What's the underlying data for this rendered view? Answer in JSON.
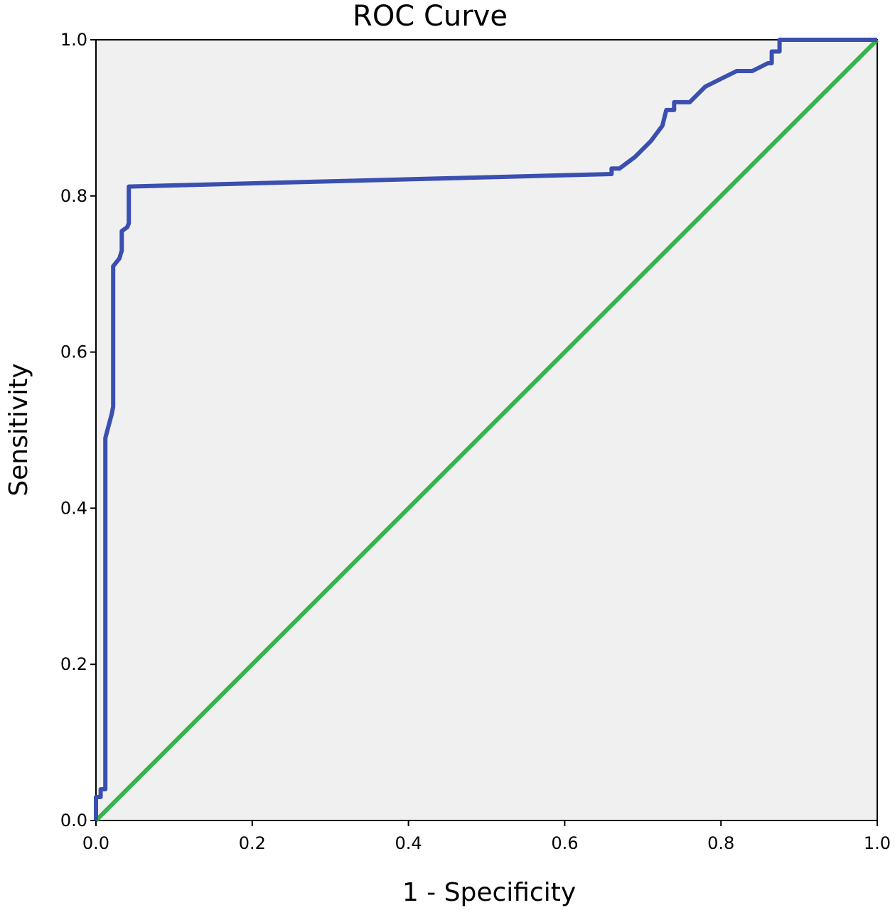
{
  "chart_data": {
    "type": "line",
    "title": "ROC Curve",
    "xlabel": "1 - Specificity",
    "ylabel": "Sensitivity",
    "xlim": [
      0,
      1
    ],
    "ylim": [
      0,
      1
    ],
    "x_ticks": [
      "0.0",
      "0.2",
      "0.4",
      "0.6",
      "0.8",
      "1.0"
    ],
    "y_ticks": [
      "0.0",
      "0.2",
      "0.4",
      "0.6",
      "0.8",
      "1.0"
    ],
    "grid": false,
    "legend": "none",
    "plot_background": "#f0f0f0",
    "series": [
      {
        "color": "#3a4fb0",
        "points": [
          [
            0.0,
            0.0
          ],
          [
            0.0,
            0.03
          ],
          [
            0.006,
            0.03
          ],
          [
            0.006,
            0.04
          ],
          [
            0.012,
            0.04
          ],
          [
            0.012,
            0.49
          ],
          [
            0.02,
            0.52
          ],
          [
            0.022,
            0.53
          ],
          [
            0.022,
            0.71
          ],
          [
            0.03,
            0.72
          ],
          [
            0.033,
            0.73
          ],
          [
            0.033,
            0.755
          ],
          [
            0.04,
            0.76
          ],
          [
            0.042,
            0.765
          ],
          [
            0.042,
            0.812
          ],
          [
            0.66,
            0.828
          ],
          [
            0.66,
            0.835
          ],
          [
            0.67,
            0.835
          ],
          [
            0.69,
            0.85
          ],
          [
            0.71,
            0.87
          ],
          [
            0.725,
            0.89
          ],
          [
            0.73,
            0.91
          ],
          [
            0.74,
            0.91
          ],
          [
            0.74,
            0.92
          ],
          [
            0.76,
            0.92
          ],
          [
            0.78,
            0.94
          ],
          [
            0.81,
            0.955
          ],
          [
            0.82,
            0.96
          ],
          [
            0.84,
            0.96
          ],
          [
            0.86,
            0.97
          ],
          [
            0.865,
            0.97
          ],
          [
            0.865,
            0.985
          ],
          [
            0.875,
            0.985
          ],
          [
            0.875,
            1.0
          ],
          [
            1.0,
            1.0
          ]
        ]
      },
      {
        "color": "#33b54a",
        "points": [
          [
            0.0,
            0.0
          ],
          [
            1.0,
            1.0
          ]
        ]
      }
    ]
  }
}
